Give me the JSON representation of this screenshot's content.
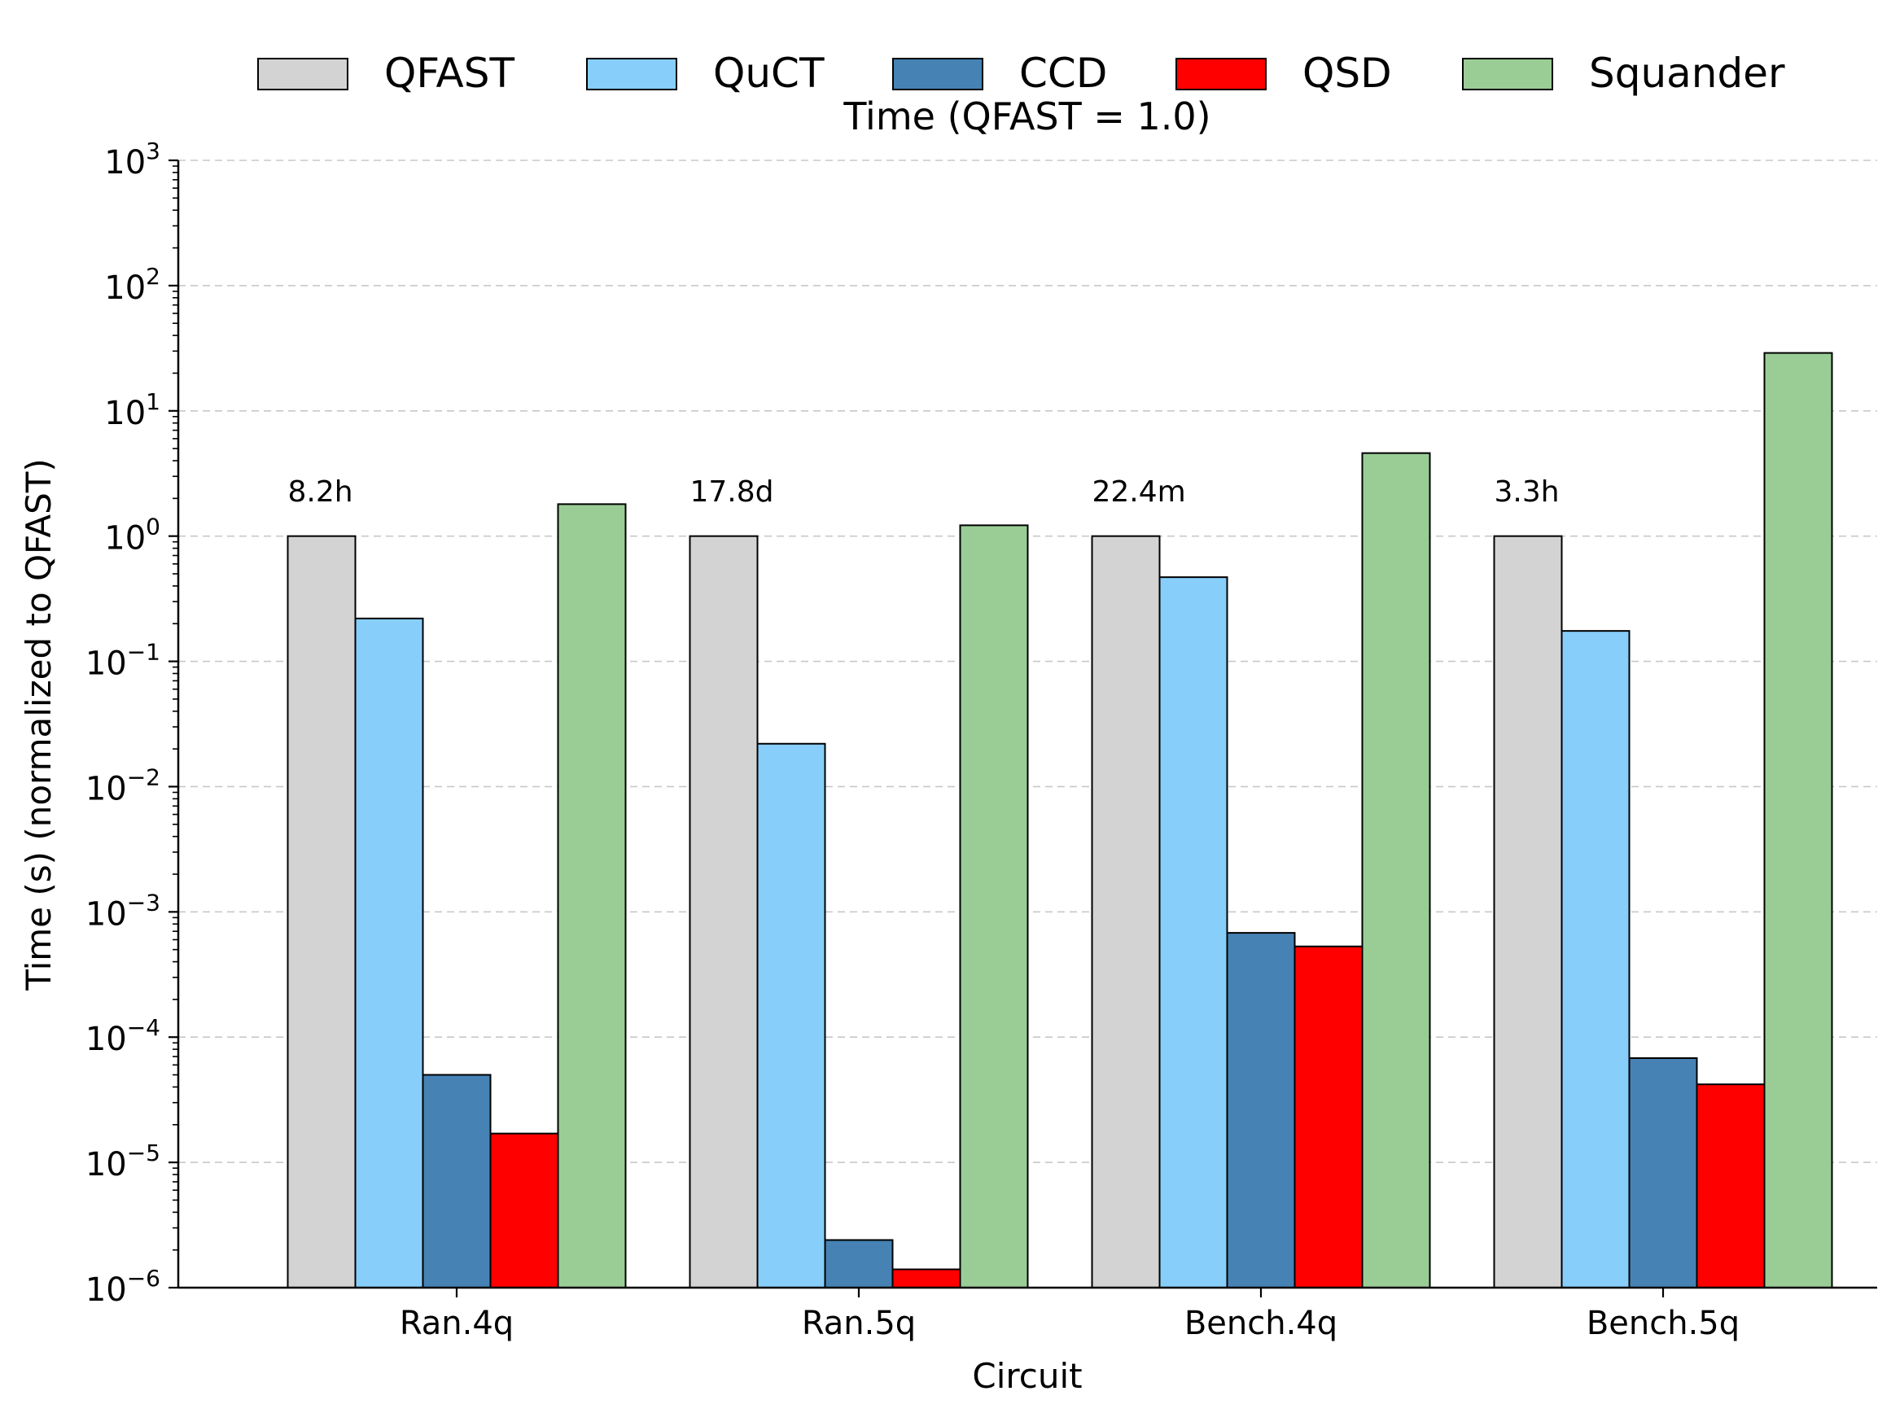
{
  "chart_data": {
    "type": "bar",
    "title": "Time (QFAST = 1.0)",
    "xlabel": "Circuit",
    "ylabel": "Time (s) (normalized to QFAST)",
    "yscale": "log",
    "ylim": [
      1e-06,
      1000
    ],
    "y_ticks": [
      {
        "base": "10",
        "exp": "−6"
      },
      {
        "base": "10",
        "exp": "−5"
      },
      {
        "base": "10",
        "exp": "−4"
      },
      {
        "base": "10",
        "exp": "−3"
      },
      {
        "base": "10",
        "exp": "−2"
      },
      {
        "base": "10",
        "exp": "−1"
      },
      {
        "base": "10",
        "exp": "0"
      },
      {
        "base": "10",
        "exp": "1"
      },
      {
        "base": "10",
        "exp": "2"
      },
      {
        "base": "10",
        "exp": "3"
      }
    ],
    "grid": "horizontal dashed",
    "legend_position": "top",
    "categories": [
      "Ran.4q",
      "Ran.5q",
      "Bench.4q",
      "Bench.5q"
    ],
    "annotations": [
      "8.2h",
      "17.8d",
      "22.4m",
      "3.3h"
    ],
    "series": [
      {
        "name": "QFAST",
        "color": "#d3d3d3",
        "values": [
          1.0,
          1.0,
          1.0,
          1.0
        ]
      },
      {
        "name": "QuCT",
        "color": "#87cefa",
        "values": [
          0.22,
          0.022,
          0.47,
          0.175
        ]
      },
      {
        "name": "CCD",
        "color": "#4682b4",
        "values": [
          5e-05,
          2.4e-06,
          0.00068,
          6.8e-05
        ]
      },
      {
        "name": "QSD",
        "color": "#ff0000",
        "values": [
          1.7e-05,
          1.4e-06,
          0.00053,
          4.2e-05
        ]
      },
      {
        "name": "Squander",
        "color": "#9acd96",
        "values": [
          1.8,
          1.22,
          4.6,
          29.0
        ]
      }
    ]
  }
}
